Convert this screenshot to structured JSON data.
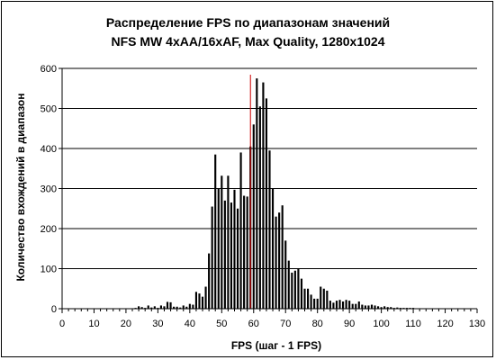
{
  "chart_data": {
    "type": "bar",
    "title": [
      "Распределение FPS по диапазонам значений",
      "NFS MW 4xAA/16xAF, Max Quality, 1280x1024"
    ],
    "xlabel": "FPS (шаг - 1 FPS)",
    "ylabel": "Количество вхождений в диапазон",
    "xlim": [
      0,
      130
    ],
    "ylim": [
      0,
      600
    ],
    "xticks": [
      0,
      10,
      20,
      30,
      40,
      50,
      60,
      70,
      80,
      90,
      100,
      110,
      120,
      130
    ],
    "yticks": [
      0,
      100,
      200,
      300,
      400,
      500,
      600
    ],
    "grid": "horizontal",
    "bar_color": "#000000",
    "marker": {
      "x": 59,
      "color": "#cc0000"
    },
    "x": [
      23,
      24,
      25,
      26,
      27,
      28,
      29,
      30,
      31,
      32,
      33,
      34,
      35,
      36,
      37,
      38,
      39,
      40,
      41,
      42,
      43,
      44,
      45,
      46,
      47,
      48,
      49,
      50,
      51,
      52,
      53,
      54,
      55,
      56,
      57,
      58,
      59,
      60,
      61,
      62,
      63,
      64,
      65,
      66,
      67,
      68,
      69,
      70,
      71,
      72,
      73,
      74,
      75,
      76,
      77,
      78,
      79,
      80,
      81,
      82,
      83,
      84,
      85,
      86,
      87,
      88,
      89,
      90,
      91,
      92,
      93,
      94,
      95,
      96,
      97,
      98,
      99,
      100,
      101,
      102,
      103,
      104,
      105,
      106,
      107,
      108,
      109,
      110
    ],
    "values": [
      2,
      6,
      4,
      2,
      8,
      3,
      6,
      2,
      8,
      6,
      17,
      16,
      5,
      5,
      3,
      8,
      5,
      12,
      10,
      42,
      38,
      30,
      55,
      138,
      255,
      385,
      300,
      332,
      270,
      332,
      265,
      297,
      250,
      390,
      282,
      280,
      405,
      460,
      575,
      505,
      565,
      525,
      395,
      300,
      230,
      240,
      258,
      170,
      120,
      90,
      95,
      100,
      75,
      50,
      50,
      35,
      25,
      25,
      55,
      50,
      45,
      20,
      15,
      20,
      22,
      18,
      22,
      20,
      12,
      12,
      18,
      10,
      8,
      8,
      10,
      8,
      6,
      4,
      6,
      4,
      4,
      2,
      3,
      2,
      2,
      2,
      2,
      2
    ]
  }
}
